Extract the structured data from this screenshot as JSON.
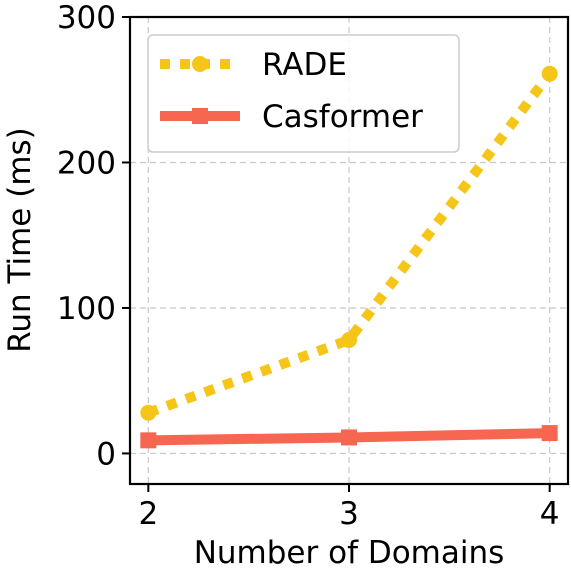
{
  "chart_data": {
    "type": "line",
    "title": "",
    "xlabel": "Number of Domains",
    "ylabel": "Run Time (ms)",
    "x": [
      2,
      3,
      4
    ],
    "xlim": [
      2,
      4
    ],
    "ylim": [
      0,
      300
    ],
    "xticks": [
      "2",
      "3",
      "4"
    ],
    "yticks": [
      "0",
      "100",
      "200",
      "300"
    ],
    "grid": true,
    "legend_position": "top-left",
    "series": [
      {
        "name": "RADE",
        "values": [
          28,
          78,
          261
        ],
        "color": "#F5C518",
        "style": "dotted",
        "marker": "circle"
      },
      {
        "name": "Casformer",
        "values": [
          9,
          11,
          14
        ],
        "color": "#F76650",
        "style": "solid",
        "marker": "square"
      }
    ]
  }
}
